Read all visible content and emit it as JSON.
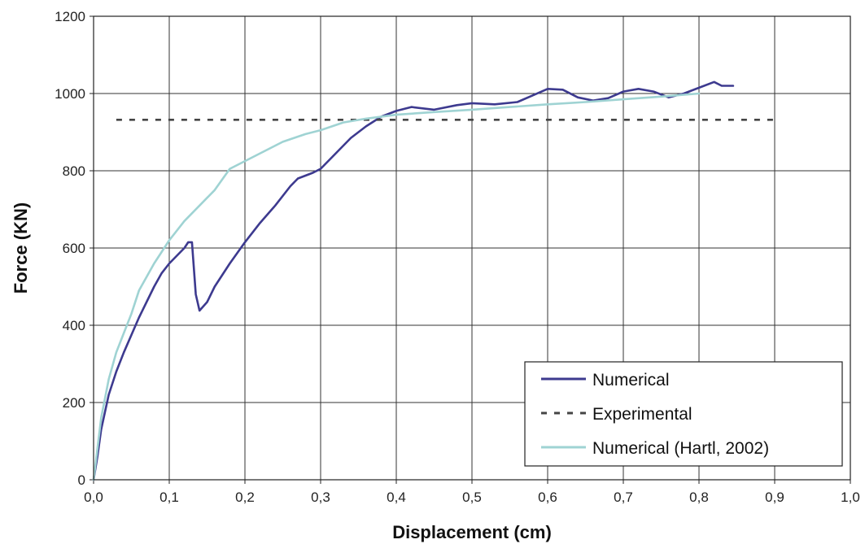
{
  "chart_data": {
    "type": "line",
    "title": "",
    "xlabel": "Displacement (cm)",
    "ylabel": "Force (KN)",
    "xlim": [
      0,
      1.0
    ],
    "ylim": [
      0,
      1200
    ],
    "x_ticks": [
      "0,0",
      "0,1",
      "0,2",
      "0,3",
      "0,4",
      "0,5",
      "0,6",
      "0,7",
      "0,8",
      "0,9",
      "1,0"
    ],
    "y_ticks": [
      "0",
      "200",
      "400",
      "600",
      "800",
      "1000",
      "1200"
    ],
    "grid": true,
    "legend_position": "bottom-right",
    "series": [
      {
        "name": "Numerical",
        "style": "solid",
        "color": "#3d3a8f",
        "points": [
          [
            0,
            0
          ],
          [
            0.005,
            60
          ],
          [
            0.01,
            130
          ],
          [
            0.02,
            220
          ],
          [
            0.03,
            280
          ],
          [
            0.04,
            330
          ],
          [
            0.05,
            375
          ],
          [
            0.06,
            420
          ],
          [
            0.07,
            460
          ],
          [
            0.08,
            500
          ],
          [
            0.09,
            535
          ],
          [
            0.1,
            560
          ],
          [
            0.11,
            580
          ],
          [
            0.12,
            600
          ],
          [
            0.125,
            615
          ],
          [
            0.13,
            615
          ],
          [
            0.135,
            480
          ],
          [
            0.14,
            438
          ],
          [
            0.15,
            460
          ],
          [
            0.16,
            500
          ],
          [
            0.18,
            560
          ],
          [
            0.2,
            615
          ],
          [
            0.22,
            665
          ],
          [
            0.24,
            710
          ],
          [
            0.26,
            760
          ],
          [
            0.27,
            780
          ],
          [
            0.29,
            795
          ],
          [
            0.3,
            805
          ],
          [
            0.32,
            845
          ],
          [
            0.34,
            885
          ],
          [
            0.36,
            915
          ],
          [
            0.38,
            940
          ],
          [
            0.4,
            955
          ],
          [
            0.42,
            965
          ],
          [
            0.45,
            958
          ],
          [
            0.48,
            970
          ],
          [
            0.5,
            975
          ],
          [
            0.53,
            972
          ],
          [
            0.56,
            978
          ],
          [
            0.58,
            995
          ],
          [
            0.6,
            1012
          ],
          [
            0.62,
            1010
          ],
          [
            0.64,
            990
          ],
          [
            0.66,
            982
          ],
          [
            0.68,
            988
          ],
          [
            0.7,
            1005
          ],
          [
            0.72,
            1012
          ],
          [
            0.74,
            1005
          ],
          [
            0.76,
            990
          ],
          [
            0.78,
            1000
          ],
          [
            0.8,
            1015
          ],
          [
            0.82,
            1030
          ],
          [
            0.83,
            1020
          ],
          [
            0.845,
            1020
          ]
        ]
      },
      {
        "name": "Experimental",
        "style": "dashed",
        "color": "#444444",
        "points": [
          [
            0.03,
            932
          ],
          [
            0.9,
            932
          ]
        ]
      },
      {
        "name": "Numerical (Hartl, 2002)",
        "style": "solid",
        "color": "#9fd3d3",
        "points": [
          [
            0,
            0
          ],
          [
            0.005,
            80
          ],
          [
            0.01,
            160
          ],
          [
            0.02,
            260
          ],
          [
            0.03,
            330
          ],
          [
            0.04,
            380
          ],
          [
            0.05,
            430
          ],
          [
            0.06,
            490
          ],
          [
            0.08,
            560
          ],
          [
            0.1,
            620
          ],
          [
            0.12,
            670
          ],
          [
            0.14,
            710
          ],
          [
            0.16,
            750
          ],
          [
            0.18,
            805
          ],
          [
            0.2,
            825
          ],
          [
            0.22,
            845
          ],
          [
            0.25,
            875
          ],
          [
            0.28,
            895
          ],
          [
            0.3,
            905
          ],
          [
            0.33,
            925
          ],
          [
            0.36,
            935
          ],
          [
            0.4,
            945
          ],
          [
            0.45,
            952
          ],
          [
            0.5,
            958
          ],
          [
            0.55,
            965
          ],
          [
            0.6,
            972
          ],
          [
            0.65,
            978
          ],
          [
            0.7,
            985
          ],
          [
            0.75,
            992
          ],
          [
            0.8,
            1000
          ]
        ]
      }
    ]
  }
}
